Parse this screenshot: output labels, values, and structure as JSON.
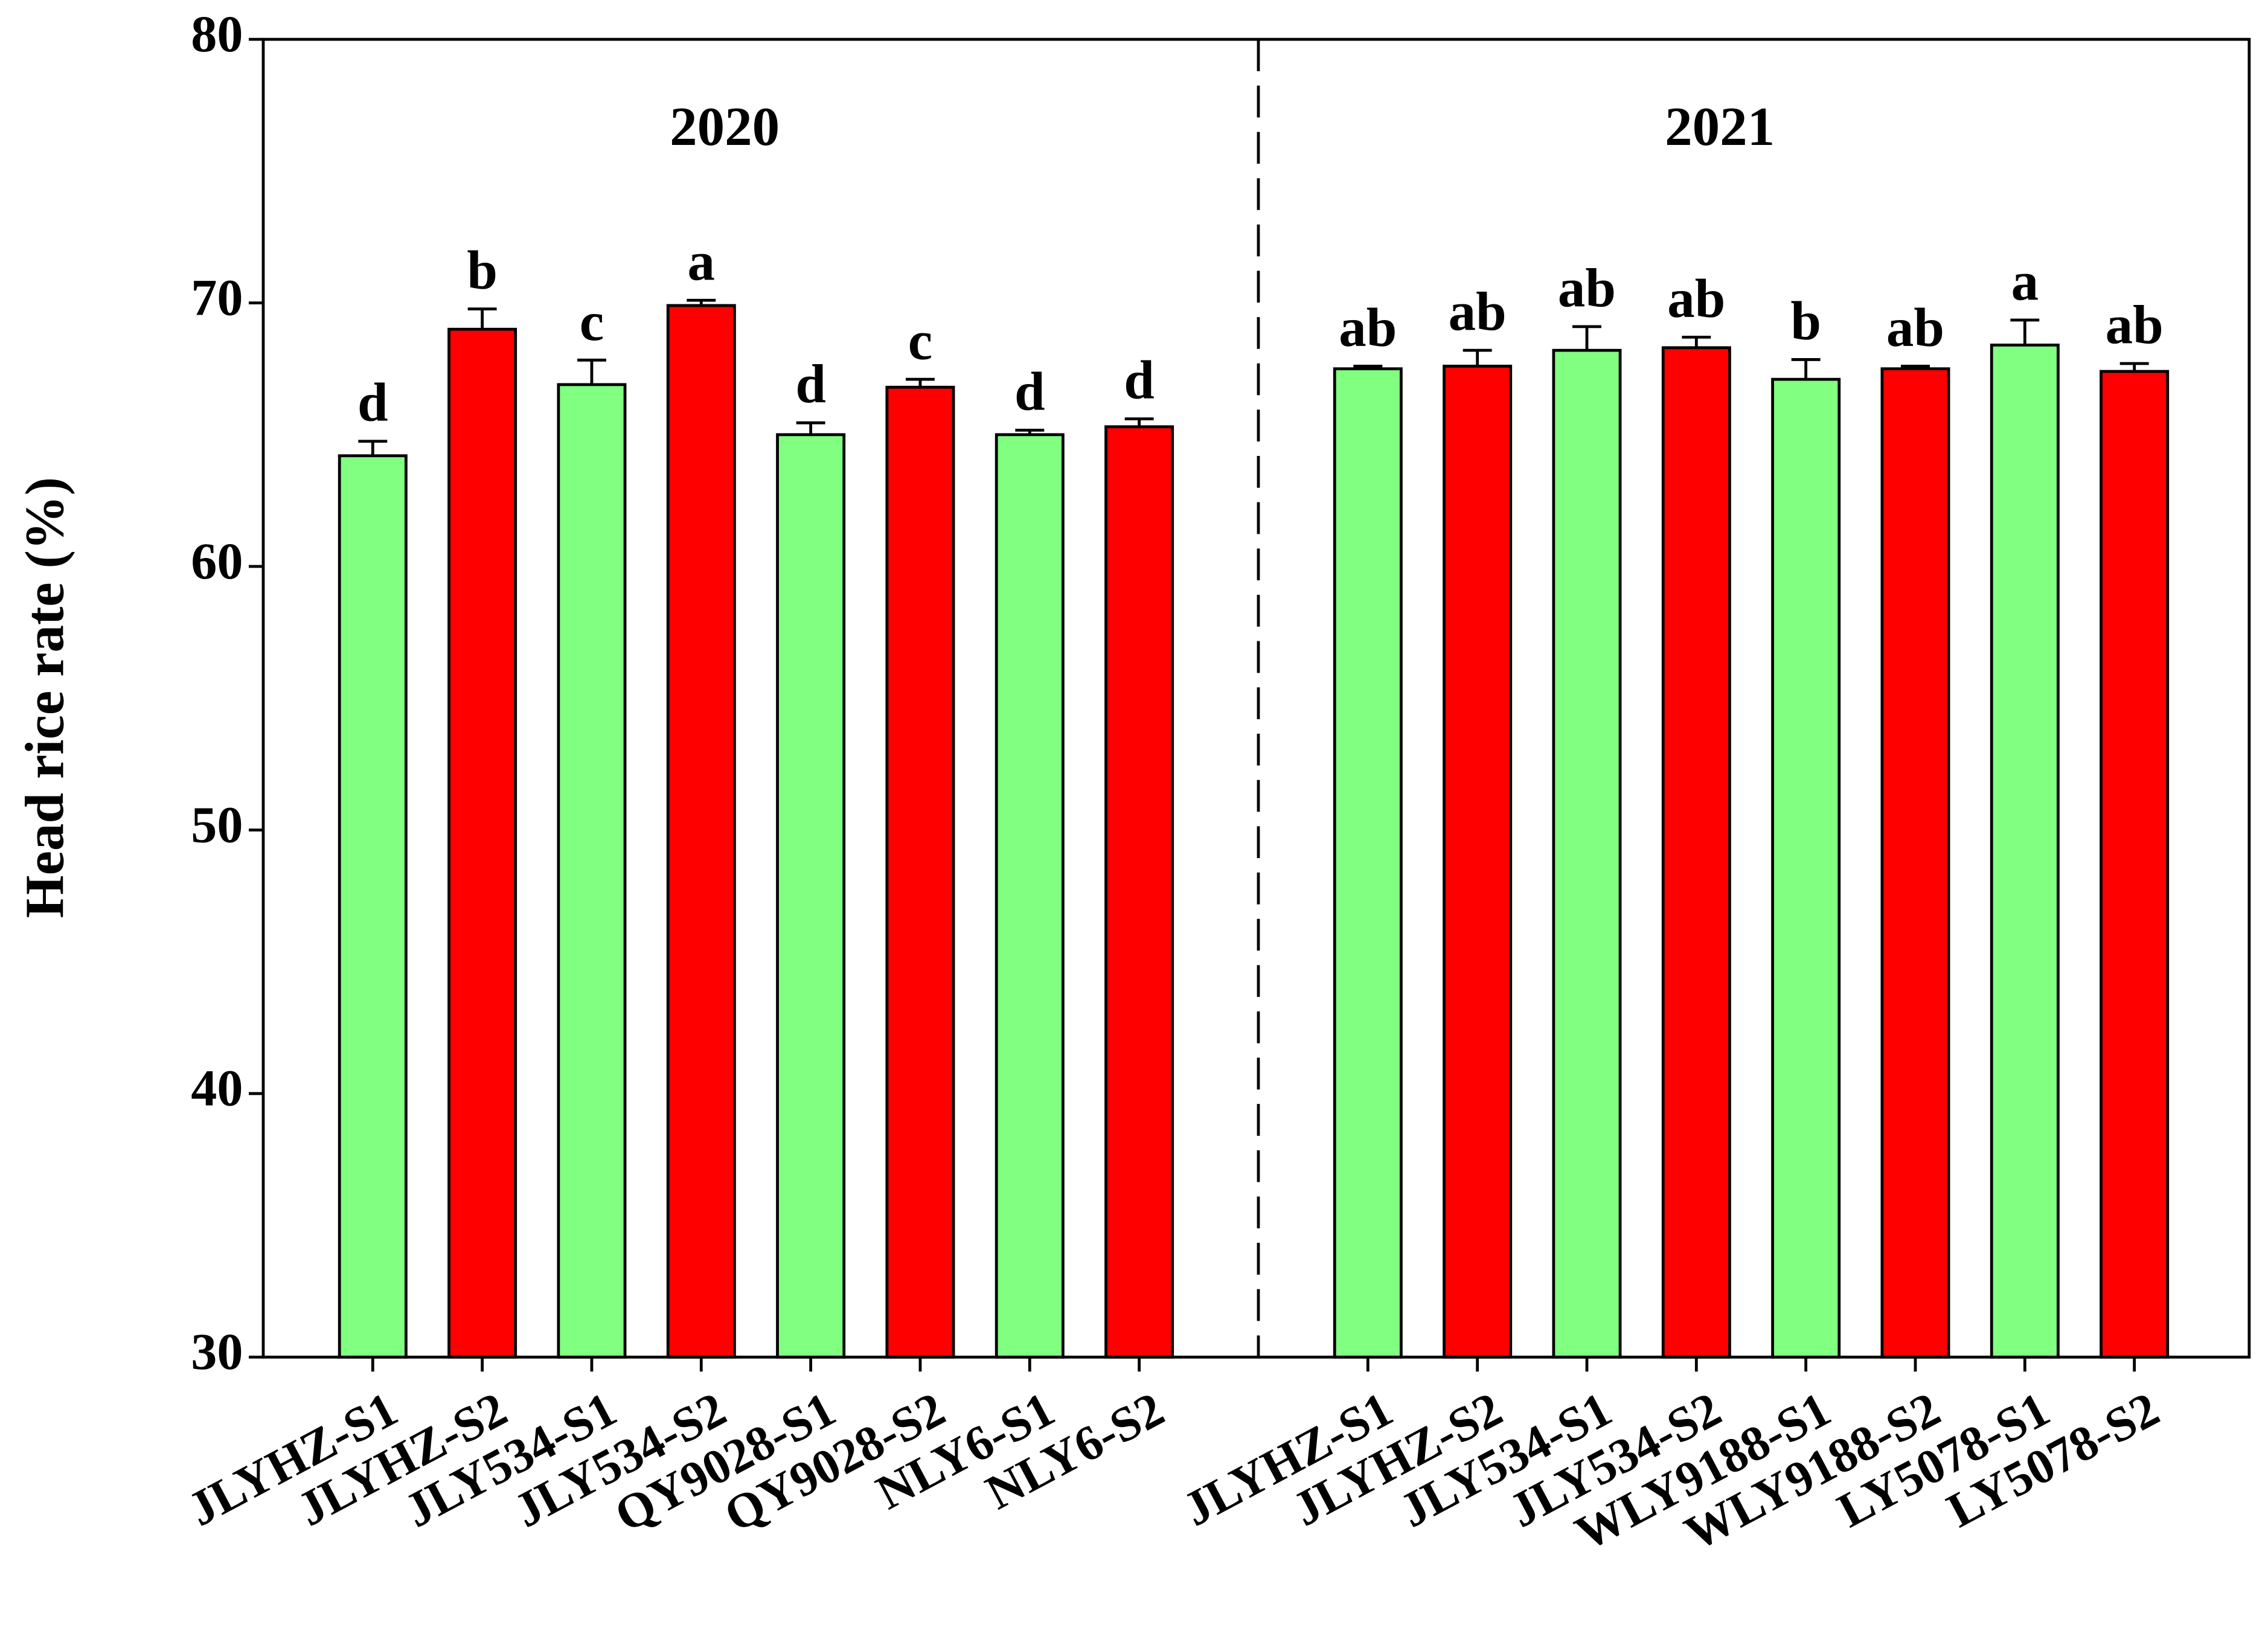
{
  "chart_data": {
    "type": "bar",
    "y_label": "Head rice rate (%)",
    "ylim": [
      30,
      80
    ],
    "yticks": [
      30,
      40,
      50,
      60,
      70,
      80
    ],
    "colors": [
      "#80ff80",
      "#ff0000"
    ],
    "groups": [
      {
        "name": "2020",
        "categories": [
          "JLYHZ-S1",
          "JLYHZ-S2",
          "JLY534-S1",
          "JLY534-S2",
          "QY9028-S1",
          "QY9028-S2",
          "NLY6-S1",
          "NLY6-S2"
        ],
        "values": [
          64.2,
          69.0,
          66.9,
          69.9,
          65.0,
          66.8,
          65.0,
          65.3
        ],
        "errors": [
          0.55,
          0.77,
          0.93,
          0.2,
          0.45,
          0.3,
          0.17,
          0.3
        ],
        "letters": [
          "d",
          "b",
          "c",
          "a",
          "d",
          "c",
          "d",
          "d"
        ]
      },
      {
        "name": "2021",
        "categories": [
          "JLYHZ-S1",
          "JLYHZ-S2",
          "JLY534-S1",
          "JLY534-S2",
          "WLY9188-S1",
          "WLY9188-S2",
          "LY5078-S1",
          "LY5078-S2"
        ],
        "values": [
          67.5,
          67.6,
          68.2,
          68.3,
          67.1,
          67.5,
          68.4,
          67.4
        ],
        "errors": [
          0.1,
          0.6,
          0.9,
          0.4,
          0.75,
          0.1,
          0.95,
          0.3
        ],
        "letters": [
          "ab",
          "ab",
          "ab",
          "ab",
          "b",
          "ab",
          "a",
          "ab"
        ]
      }
    ]
  }
}
